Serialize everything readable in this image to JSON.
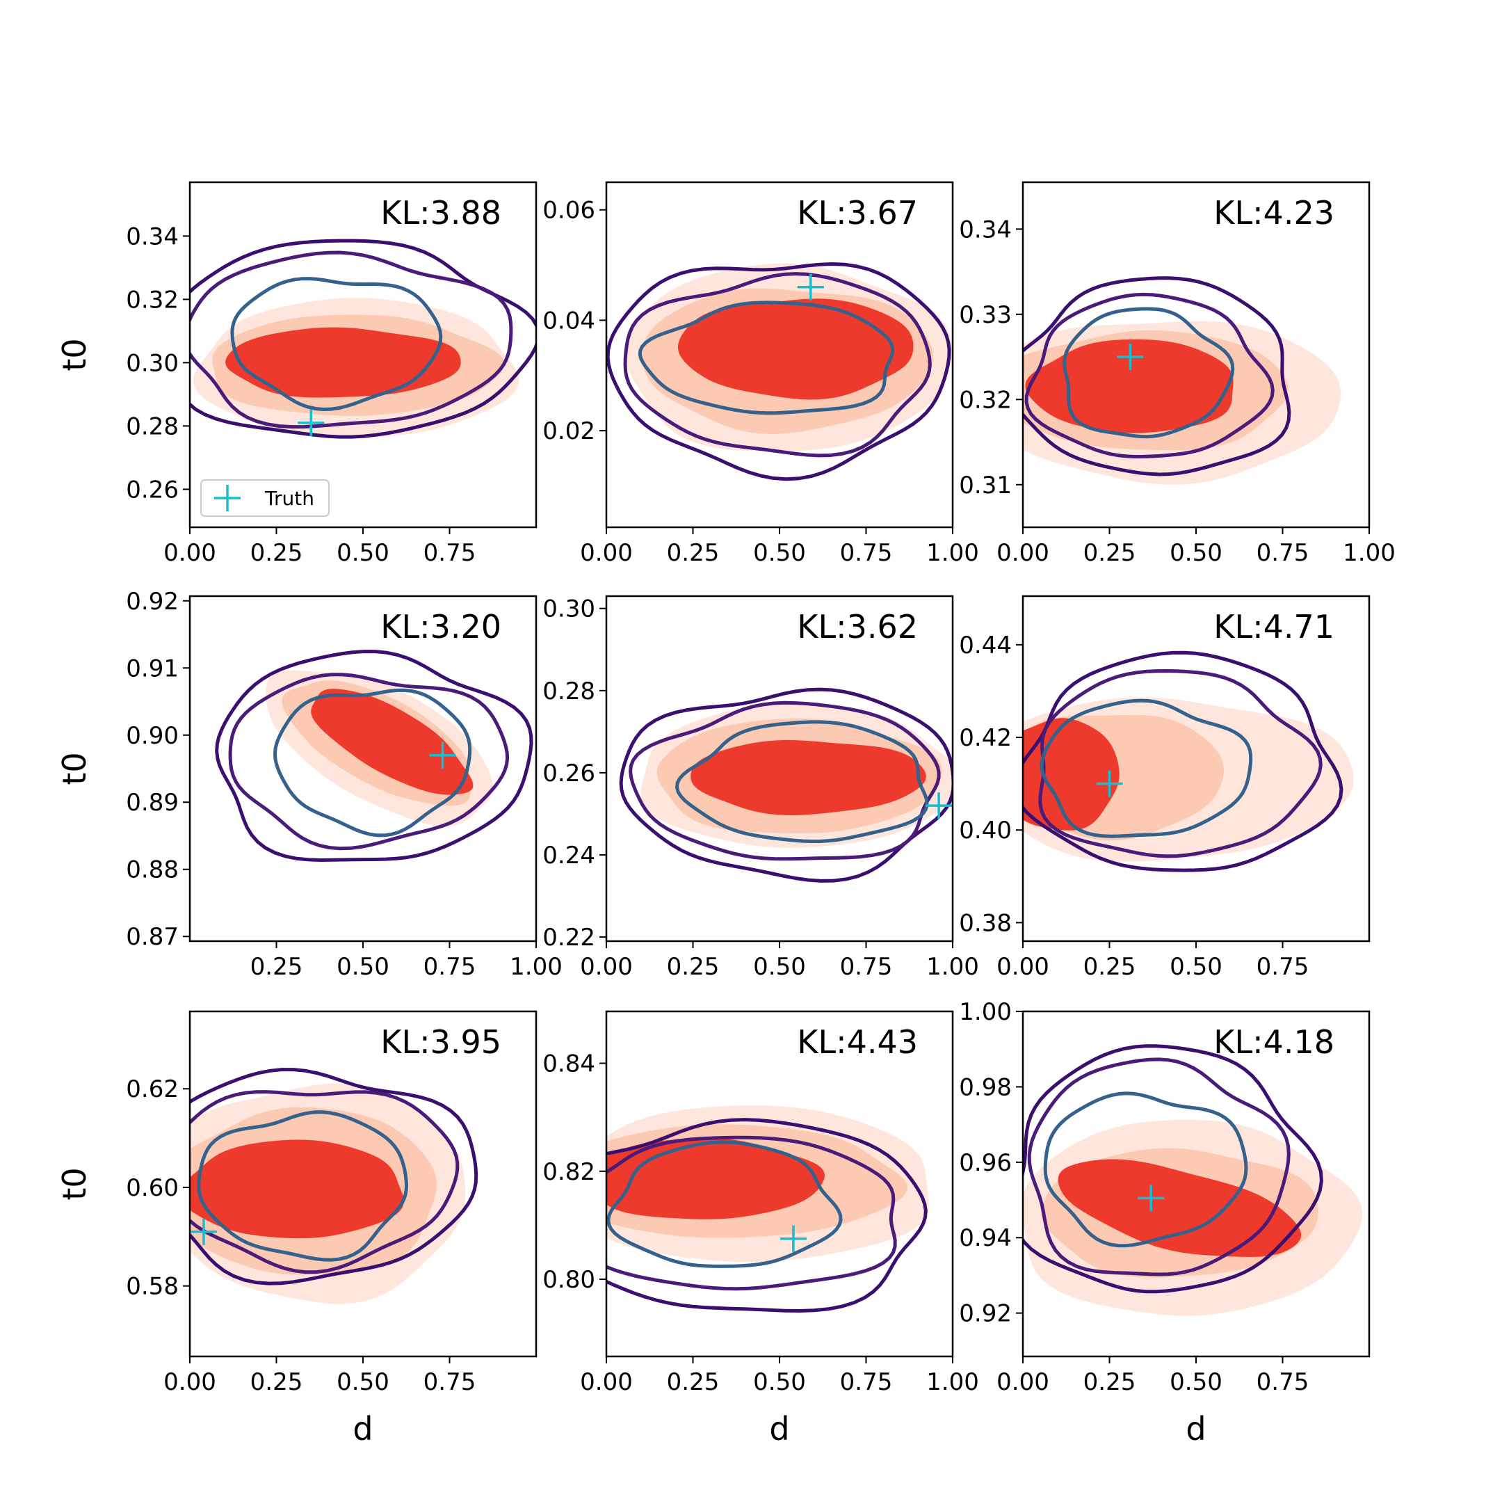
{
  "figure": {
    "xlabel": "d",
    "ylabel": "t0",
    "legend_label": "Truth",
    "colors": {
      "truth_marker": "#17becf",
      "filled_levels": [
        "#fee6dc",
        "#fcc9b3",
        "#ee3a2c"
      ],
      "contour_outer": "#3b0f6f",
      "contour_mid": "#4b1b7a",
      "contour_inner": "#34628c"
    }
  },
  "chart_data": [
    {
      "type": "contour",
      "title": "KL:3.88",
      "xlabel": "",
      "ylabel": "t0",
      "xlim": [
        0.0,
        1.0
      ],
      "ylim": [
        0.248,
        0.357
      ],
      "xticks": [
        "0.00",
        "0.25",
        "0.50",
        "0.75"
      ],
      "yticks": [
        "0.26",
        "0.28",
        "0.30",
        "0.32",
        "0.34"
      ],
      "truth": [
        0.35,
        0.281
      ],
      "legend": "lower-left",
      "filled": [
        {
          "cx": 0.48,
          "cy": 0.298,
          "rx": 0.46,
          "ry": 0.022
        },
        {
          "cx": 0.47,
          "cy": 0.299,
          "rx": 0.42,
          "ry": 0.016
        },
        {
          "cx": 0.44,
          "cy": 0.3,
          "rx": 0.34,
          "ry": 0.011
        }
      ],
      "contours": [
        {
          "cx": 0.45,
          "cy": 0.307,
          "rx": 0.52,
          "ry": 0.031
        },
        {
          "cx": 0.45,
          "cy": 0.307,
          "rx": 0.47,
          "ry": 0.027
        },
        {
          "cx": 0.42,
          "cy": 0.307,
          "rx": 0.3,
          "ry": 0.02
        }
      ]
    },
    {
      "type": "contour",
      "title": "KL:3.67",
      "xlabel": "",
      "ylabel": "",
      "xlim": [
        0.0,
        1.0
      ],
      "ylim": [
        0.0025,
        0.065
      ],
      "xticks": [
        "0.00",
        "0.25",
        "0.50",
        "0.75",
        "1.00"
      ],
      "yticks": [
        "0.02",
        "0.04",
        "0.06"
      ],
      "truth": [
        0.59,
        0.046
      ],
      "legend": null,
      "filled": [
        {
          "cx": 0.52,
          "cy": 0.033,
          "rx": 0.47,
          "ry": 0.017
        },
        {
          "cx": 0.52,
          "cy": 0.033,
          "rx": 0.42,
          "ry": 0.013
        },
        {
          "cx": 0.55,
          "cy": 0.035,
          "rx": 0.34,
          "ry": 0.009
        }
      ],
      "contours": [
        {
          "cx": 0.5,
          "cy": 0.032,
          "rx": 0.49,
          "ry": 0.019
        },
        {
          "cx": 0.5,
          "cy": 0.032,
          "rx": 0.44,
          "ry": 0.016
        },
        {
          "cx": 0.48,
          "cy": 0.033,
          "rx": 0.36,
          "ry": 0.01
        }
      ]
    },
    {
      "type": "contour",
      "title": "KL:4.23",
      "xlabel": "",
      "ylabel": "",
      "xlim": [
        0.0,
        1.0
      ],
      "ylim": [
        0.305,
        0.3455
      ],
      "xticks": [
        "0.00",
        "0.25",
        "0.50",
        "0.75",
        "1.00"
      ],
      "yticks": [
        "0.31",
        "0.32",
        "0.33",
        "0.34"
      ],
      "truth": [
        0.31,
        0.325
      ],
      "legend": null,
      "filled": [
        {
          "cx": 0.4,
          "cy": 0.32,
          "rx": 0.52,
          "ry": 0.0095
        },
        {
          "cx": 0.35,
          "cy": 0.321,
          "rx": 0.42,
          "ry": 0.007
        },
        {
          "cx": 0.32,
          "cy": 0.3215,
          "rx": 0.3,
          "ry": 0.0055
        }
      ],
      "contours": [
        {
          "cx": 0.38,
          "cy": 0.3225,
          "rx": 0.4,
          "ry": 0.0115
        },
        {
          "cx": 0.36,
          "cy": 0.3225,
          "rx": 0.34,
          "ry": 0.0095
        },
        {
          "cx": 0.35,
          "cy": 0.323,
          "rx": 0.24,
          "ry": 0.0075
        }
      ]
    },
    {
      "type": "contour",
      "title": "KL:3.20",
      "xlabel": "",
      "ylabel": "t0",
      "xlim": [
        0.0,
        1.0
      ],
      "ylim": [
        0.8693,
        0.9207
      ],
      "xticks": [
        "0.25",
        "0.50",
        "0.75",
        "1.00"
      ],
      "yticks": [
        "0.87",
        "0.88",
        "0.89",
        "0.90",
        "0.91",
        "0.92"
      ],
      "truth": [
        0.73,
        0.897
      ],
      "legend": null,
      "filled": [
        {
          "cx": 0.55,
          "cy": 0.8985,
          "rx": 0.36,
          "ry": 0.0085,
          "rot": 28
        },
        {
          "cx": 0.55,
          "cy": 0.899,
          "rx": 0.3,
          "ry": 0.0065,
          "rot": 28
        },
        {
          "cx": 0.58,
          "cy": 0.899,
          "rx": 0.26,
          "ry": 0.0048,
          "rot": 30
        }
      ],
      "contours": [
        {
          "cx": 0.52,
          "cy": 0.8965,
          "rx": 0.45,
          "ry": 0.0155
        },
        {
          "cx": 0.51,
          "cy": 0.8965,
          "rx": 0.4,
          "ry": 0.0125
        },
        {
          "cx": 0.53,
          "cy": 0.8965,
          "rx": 0.28,
          "ry": 0.0105
        }
      ]
    },
    {
      "type": "contour",
      "title": "KL:3.62",
      "xlabel": "",
      "ylabel": "",
      "xlim": [
        0.0,
        1.0
      ],
      "ylim": [
        0.219,
        0.303
      ],
      "xticks": [
        "0.00",
        "0.25",
        "0.50",
        "0.75",
        "1.00"
      ],
      "yticks": [
        "0.22",
        "0.24",
        "0.26",
        "0.28",
        "0.30"
      ],
      "truth": [
        0.96,
        0.252
      ],
      "legend": null,
      "filled": [
        {
          "cx": 0.55,
          "cy": 0.259,
          "rx": 0.46,
          "ry": 0.0175
        },
        {
          "cx": 0.55,
          "cy": 0.259,
          "rx": 0.41,
          "ry": 0.014
        },
        {
          "cx": 0.58,
          "cy": 0.259,
          "rx": 0.34,
          "ry": 0.009
        }
      ],
      "contours": [
        {
          "cx": 0.53,
          "cy": 0.2575,
          "rx": 0.48,
          "ry": 0.0225
        },
        {
          "cx": 0.53,
          "cy": 0.2575,
          "rx": 0.44,
          "ry": 0.019
        },
        {
          "cx": 0.58,
          "cy": 0.2575,
          "rx": 0.35,
          "ry": 0.0145
        }
      ]
    },
    {
      "type": "contour",
      "title": "KL:4.71",
      "xlabel": "",
      "ylabel": "",
      "xlim": [
        0.0,
        1.0
      ],
      "ylim": [
        0.376,
        0.4505
      ],
      "xticks": [
        "0.00",
        "0.25",
        "0.50",
        "0.75"
      ],
      "yticks": [
        "0.38",
        "0.40",
        "0.42",
        "0.44"
      ],
      "truth": [
        0.25,
        0.41
      ],
      "legend": null,
      "filled": [
        {
          "cx": 0.4,
          "cy": 0.411,
          "rx": 0.55,
          "ry": 0.0175
        },
        {
          "cx": 0.25,
          "cy": 0.412,
          "rx": 0.33,
          "ry": 0.0135
        },
        {
          "cx": 0.1,
          "cy": 0.412,
          "rx": 0.18,
          "ry": 0.012
        }
      ],
      "contours": [
        {
          "cx": 0.45,
          "cy": 0.414,
          "rx": 0.45,
          "ry": 0.0235
        },
        {
          "cx": 0.43,
          "cy": 0.414,
          "rx": 0.4,
          "ry": 0.02
        },
        {
          "cx": 0.35,
          "cy": 0.413,
          "rx": 0.3,
          "ry": 0.0145
        }
      ]
    },
    {
      "type": "contour",
      "title": "KL:3.95",
      "xlabel": "d",
      "ylabel": "t0",
      "xlim": [
        0.0,
        1.0
      ],
      "ylim": [
        0.5657,
        0.6357
      ],
      "xticks": [
        "0.00",
        "0.25",
        "0.50",
        "0.75"
      ],
      "yticks": [
        "0.58",
        "0.60",
        "0.62"
      ],
      "truth": [
        0.04,
        0.591
      ],
      "legend": null,
      "filled": [
        {
          "cx": 0.36,
          "cy": 0.599,
          "rx": 0.44,
          "ry": 0.022
        },
        {
          "cx": 0.33,
          "cy": 0.599,
          "rx": 0.39,
          "ry": 0.017
        },
        {
          "cx": 0.3,
          "cy": 0.5995,
          "rx": 0.32,
          "ry": 0.01
        }
      ],
      "contours": [
        {
          "cx": 0.35,
          "cy": 0.6025,
          "rx": 0.47,
          "ry": 0.021
        },
        {
          "cx": 0.35,
          "cy": 0.6025,
          "rx": 0.42,
          "ry": 0.018
        },
        {
          "cx": 0.33,
          "cy": 0.6005,
          "rx": 0.3,
          "ry": 0.0145
        }
      ]
    },
    {
      "type": "contour",
      "title": "KL:4.43",
      "xlabel": "d",
      "ylabel": "",
      "xlim": [
        0.0,
        1.0
      ],
      "ylim": [
        0.7857,
        0.8496
      ],
      "xticks": [
        "0.00",
        "0.25",
        "0.50",
        "0.75",
        "1.00"
      ],
      "yticks": [
        "0.80",
        "0.82",
        "0.84"
      ],
      "truth": [
        0.54,
        0.8075
      ],
      "legend": null,
      "filled": [
        {
          "cx": 0.4,
          "cy": 0.8175,
          "rx": 0.55,
          "ry": 0.0145
        },
        {
          "cx": 0.35,
          "cy": 0.818,
          "rx": 0.5,
          "ry": 0.0105
        },
        {
          "cx": 0.28,
          "cy": 0.8185,
          "rx": 0.34,
          "ry": 0.0075
        }
      ],
      "contours": [
        {
          "cx": 0.38,
          "cy": 0.8115,
          "rx": 0.55,
          "ry": 0.0175
        },
        {
          "cx": 0.36,
          "cy": 0.812,
          "rx": 0.5,
          "ry": 0.014
        },
        {
          "cx": 0.34,
          "cy": 0.8135,
          "rx": 0.32,
          "ry": 0.0115
        }
      ]
    },
    {
      "type": "contour",
      "title": "KL:4.18",
      "xlabel": "d",
      "ylabel": "",
      "xlim": [
        0.0,
        1.0
      ],
      "ylim": [
        0.9085,
        1.0
      ],
      "xticks": [
        "0.00",
        "0.25",
        "0.50",
        "0.75"
      ],
      "yticks": [
        "0.92",
        "0.94",
        "0.96",
        "0.98",
        "1.00"
      ],
      "truth": [
        0.37,
        0.9505
      ],
      "legend": null,
      "filled": [
        {
          "cx": 0.47,
          "cy": 0.945,
          "rx": 0.49,
          "ry": 0.026
        },
        {
          "cx": 0.45,
          "cy": 0.9465,
          "rx": 0.4,
          "ry": 0.017
        },
        {
          "cx": 0.45,
          "cy": 0.9475,
          "rx": 0.36,
          "ry": 0.0105,
          "rot": 14
        }
      ],
      "contours": [
        {
          "cx": 0.4,
          "cy": 0.9575,
          "rx": 0.43,
          "ry": 0.0325
        },
        {
          "cx": 0.38,
          "cy": 0.958,
          "rx": 0.37,
          "ry": 0.0285
        },
        {
          "cx": 0.35,
          "cy": 0.9585,
          "rx": 0.29,
          "ry": 0.0195
        }
      ]
    }
  ]
}
